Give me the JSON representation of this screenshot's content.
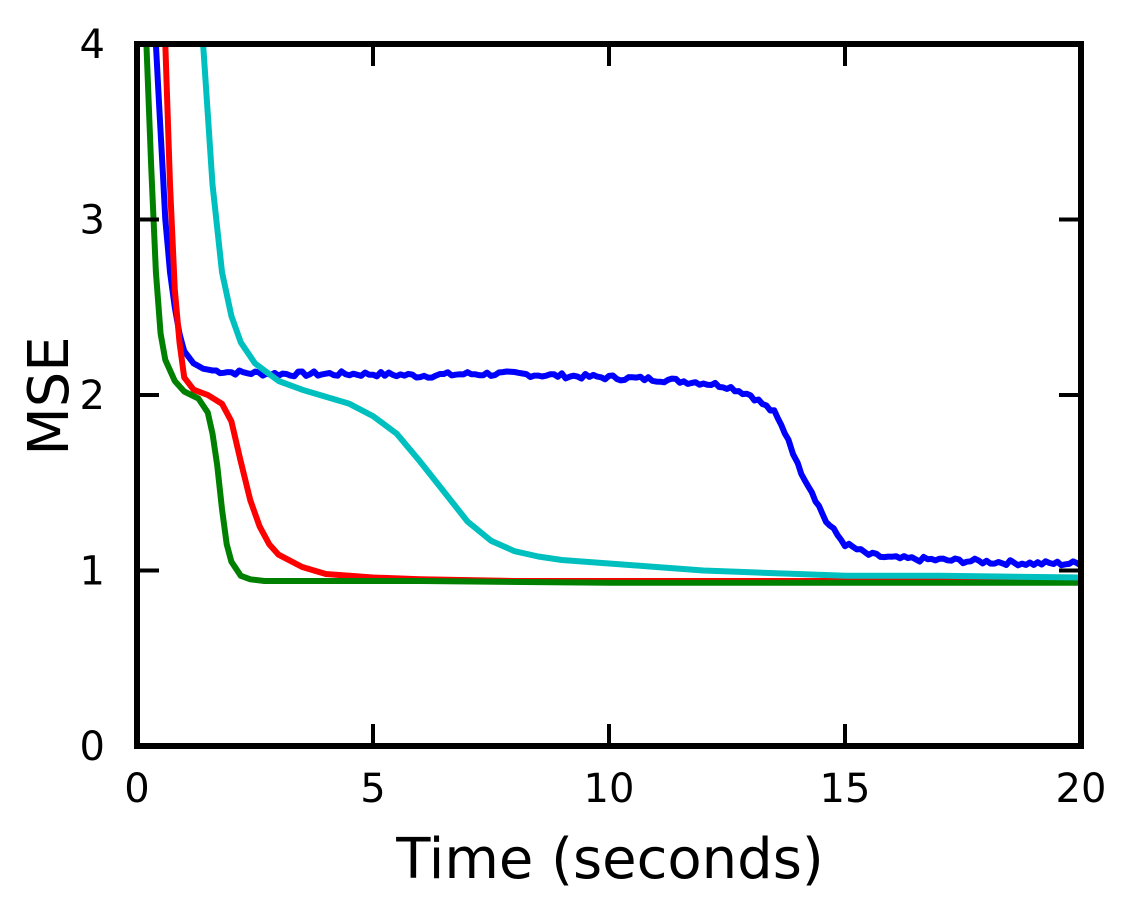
{
  "chart_data": {
    "type": "line",
    "title": "",
    "xlabel": "Time (seconds)",
    "ylabel": "MSE",
    "xlim": [
      0,
      20
    ],
    "ylim": [
      0,
      4
    ],
    "xticks": [
      "0",
      "5",
      "10",
      "15",
      "20"
    ],
    "yticks": [
      "0",
      "1",
      "2",
      "3",
      "4"
    ],
    "grid": false,
    "legend": "none",
    "series": [
      {
        "color": "#0000ff",
        "noisy": true,
        "x": [
          0.4,
          0.5,
          0.6,
          0.7,
          0.8,
          0.9,
          1.0,
          1.2,
          1.4,
          1.6,
          2.0,
          3.0,
          4.0,
          5.0,
          6.0,
          7.0,
          8.0,
          9.0,
          10.0,
          11.0,
          12.0,
          12.5,
          13.0,
          13.5,
          13.8,
          14.0,
          14.3,
          14.6,
          15.0,
          15.5,
          16.0,
          17.0,
          18.0,
          19.0,
          20.0
        ],
        "y": [
          4.0,
          3.5,
          3.0,
          2.7,
          2.5,
          2.35,
          2.25,
          2.18,
          2.15,
          2.14,
          2.13,
          2.12,
          2.12,
          2.12,
          2.11,
          2.12,
          2.12,
          2.11,
          2.1,
          2.09,
          2.07,
          2.05,
          2.0,
          1.9,
          1.75,
          1.6,
          1.45,
          1.28,
          1.15,
          1.09,
          1.07,
          1.06,
          1.05,
          1.04,
          1.04
        ]
      },
      {
        "color": "#ff0000",
        "noisy": false,
        "x": [
          0.6,
          0.7,
          0.8,
          0.9,
          1.0,
          1.2,
          1.5,
          1.8,
          2.0,
          2.2,
          2.4,
          2.6,
          2.8,
          3.0,
          3.5,
          4.0,
          5.0,
          6.0,
          8.0,
          10.0,
          15.0,
          20.0
        ],
        "y": [
          4.0,
          3.2,
          2.6,
          2.3,
          2.1,
          2.03,
          2.0,
          1.95,
          1.85,
          1.62,
          1.4,
          1.25,
          1.15,
          1.09,
          1.02,
          0.98,
          0.96,
          0.95,
          0.94,
          0.94,
          0.94,
          0.94
        ]
      },
      {
        "color": "#008000",
        "noisy": false,
        "x": [
          0.2,
          0.3,
          0.4,
          0.5,
          0.6,
          0.8,
          1.0,
          1.3,
          1.5,
          1.6,
          1.7,
          1.8,
          1.9,
          2.0,
          2.2,
          2.4,
          2.7,
          3.0,
          4.0,
          6.0,
          10.0,
          15.0,
          20.0
        ],
        "y": [
          4.0,
          3.3,
          2.7,
          2.35,
          2.2,
          2.08,
          2.02,
          1.98,
          1.9,
          1.78,
          1.6,
          1.35,
          1.15,
          1.05,
          0.97,
          0.95,
          0.94,
          0.94,
          0.94,
          0.94,
          0.93,
          0.93,
          0.93
        ]
      },
      {
        "color": "#00bfbf",
        "noisy": false,
        "x": [
          1.4,
          1.6,
          1.8,
          2.0,
          2.2,
          2.5,
          3.0,
          3.5,
          4.0,
          4.5,
          5.0,
          5.5,
          6.0,
          6.5,
          7.0,
          7.5,
          8.0,
          8.5,
          9.0,
          10.0,
          11.0,
          12.0,
          13.0,
          14.0,
          15.0,
          17.0,
          20.0
        ],
        "y": [
          4.0,
          3.2,
          2.7,
          2.45,
          2.3,
          2.18,
          2.08,
          2.03,
          1.99,
          1.95,
          1.88,
          1.78,
          1.62,
          1.45,
          1.28,
          1.17,
          1.11,
          1.08,
          1.06,
          1.04,
          1.02,
          1.0,
          0.99,
          0.98,
          0.97,
          0.97,
          0.96
        ]
      }
    ]
  }
}
